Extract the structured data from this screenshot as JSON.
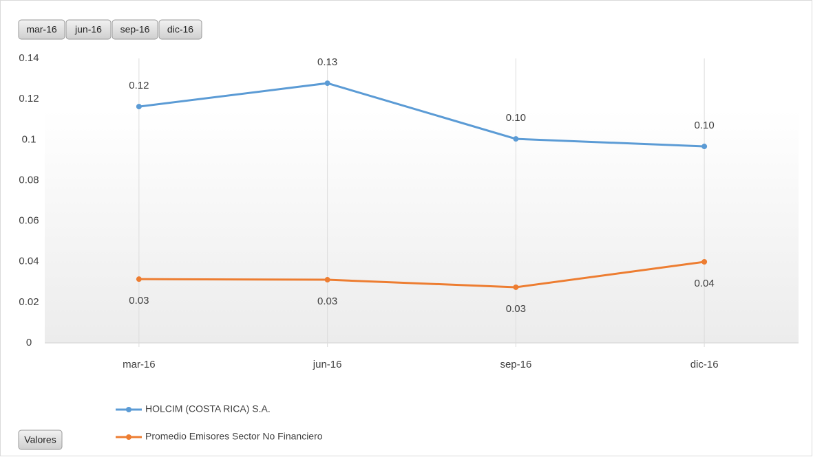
{
  "chart_data": {
    "type": "line",
    "categories": [
      "mar-16",
      "jun-16",
      "sep-16",
      "dic-16"
    ],
    "series": [
      {
        "name": "HOLCIM (COSTA RICA) S.A.",
        "color": "#5b9bd5",
        "values": [
          0.1163,
          0.1278,
          0.1004,
          0.0967
        ],
        "value_labels": [
          "0.12",
          "0.13",
          "0.10",
          "0.10"
        ]
      },
      {
        "name": "Promedio  Emisores Sector No Financiero",
        "color": "#ed7d31",
        "values": [
          0.0314,
          0.0311,
          0.0274,
          0.0399
        ],
        "value_labels": [
          "0.03",
          "0.03",
          "0.03",
          "0.04"
        ]
      }
    ],
    "ylim": [
      0,
      0.14
    ],
    "yticks": [
      0,
      0.02,
      0.04,
      0.06,
      0.08,
      0.1,
      0.12,
      0.14
    ],
    "legend": "bottom-left"
  },
  "pivot_buttons": {
    "categories": [
      "mar-16",
      "jun-16",
      "sep-16",
      "dic-16"
    ],
    "values_field": "Valores"
  }
}
